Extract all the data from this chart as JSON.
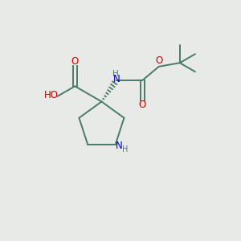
{
  "background_color": "#e8eae8",
  "bond_color": "#4a7a6a",
  "atom_colors": {
    "N": "#0000cc",
    "O": "#cc0000",
    "C": "#4a7a6a",
    "H": "#4a7a6a"
  },
  "figsize": [
    3.0,
    3.0
  ],
  "dpi": 100,
  "xlim": [
    0,
    10
  ],
  "ylim": [
    0,
    10
  ]
}
